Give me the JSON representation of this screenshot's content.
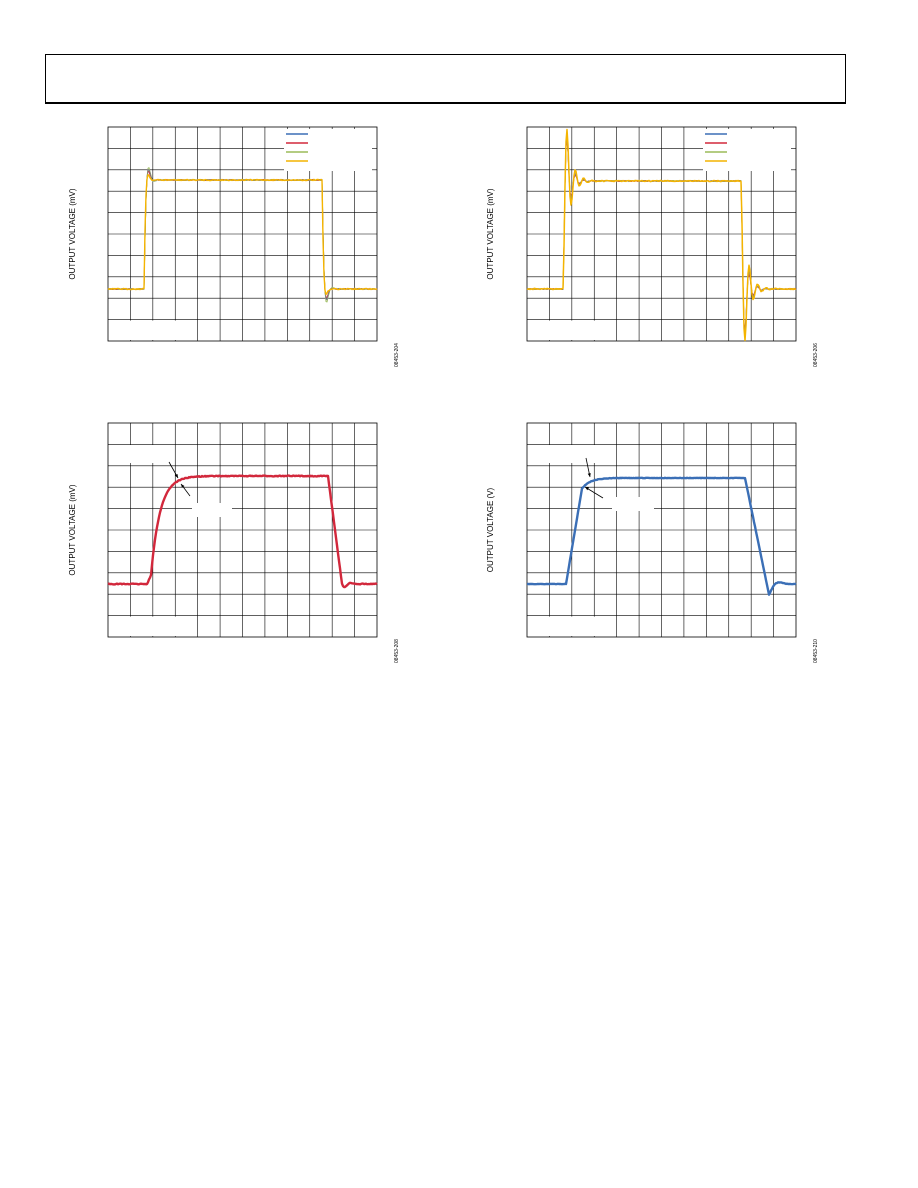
{
  "figures": [
    {
      "y_label": "OUTPUT VOLTAGE (mV)",
      "code": "08453-204"
    },
    {
      "y_label": "OUTPUT VOLTAGE (mV)",
      "code": "08453-206"
    },
    {
      "y_label": "OUTPUT VOLTAGE (mV)",
      "code": "08453-208"
    },
    {
      "y_label": "OUTPUT VOLTAGE (V)",
      "code": "08453-210"
    }
  ]
}
